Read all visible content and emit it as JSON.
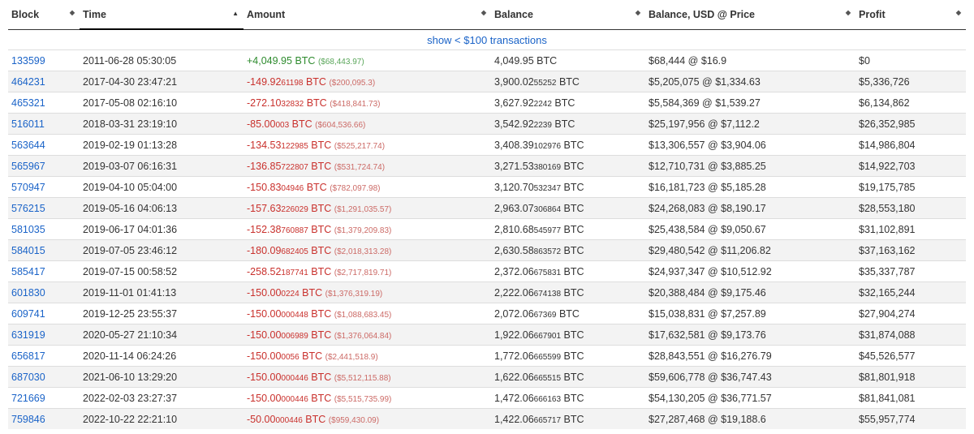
{
  "headers": {
    "block": "Block",
    "time": "Time",
    "amount": "Amount",
    "balance": "Balance",
    "usd": "Balance, USD @ Price",
    "profit": "Profit"
  },
  "toggle_link": "show < $100 transactions",
  "rows": [
    {
      "block": "133599",
      "time": "2011-06-28 05:30:05",
      "amt_main": "+4,049.95",
      "amt_small": "",
      "amt_unit": " BTC",
      "amt_usd": "($68,443.97)",
      "amt_sign": "pos",
      "bal_main": "4,049.95",
      "bal_small": "",
      "bal_unit": " BTC",
      "usd_price": "$68,444 @ $16.9",
      "profit": "$0"
    },
    {
      "block": "464231",
      "time": "2017-04-30 23:47:21",
      "amt_main": "-149.92",
      "amt_small": "61198",
      "amt_unit": " BTC",
      "amt_usd": "($200,095.3)",
      "amt_sign": "neg",
      "bal_main": "3,900.02",
      "bal_small": "55252",
      "bal_unit": " BTC",
      "usd_price": "$5,205,075 @ $1,334.63",
      "profit": "$5,336,726"
    },
    {
      "block": "465321",
      "time": "2017-05-08 02:16:10",
      "amt_main": "-272.10",
      "amt_small": "32832",
      "amt_unit": " BTC",
      "amt_usd": "($418,841.73)",
      "amt_sign": "neg",
      "bal_main": "3,627.92",
      "bal_small": "2242",
      "bal_unit": " BTC",
      "usd_price": "$5,584,369 @ $1,539.27",
      "profit": "$6,134,862"
    },
    {
      "block": "516011",
      "time": "2018-03-31 23:19:10",
      "amt_main": "-85.00",
      "amt_small": "003",
      "amt_unit": " BTC",
      "amt_usd": "($604,536.66)",
      "amt_sign": "neg",
      "bal_main": "3,542.92",
      "bal_small": "2239",
      "bal_unit": " BTC",
      "usd_price": "$25,197,956 @ $7,112.2",
      "profit": "$26,352,985"
    },
    {
      "block": "563644",
      "time": "2019-02-19 01:13:28",
      "amt_main": "-134.53",
      "amt_small": "122985",
      "amt_unit": " BTC",
      "amt_usd": "($525,217.74)",
      "amt_sign": "neg",
      "bal_main": "3,408.39",
      "bal_small": "102976",
      "bal_unit": " BTC",
      "usd_price": "$13,306,557 @ $3,904.06",
      "profit": "$14,986,804"
    },
    {
      "block": "565967",
      "time": "2019-03-07 06:16:31",
      "amt_main": "-136.85",
      "amt_small": "722807",
      "amt_unit": " BTC",
      "amt_usd": "($531,724.74)",
      "amt_sign": "neg",
      "bal_main": "3,271.53",
      "bal_small": "380169",
      "bal_unit": " BTC",
      "usd_price": "$12,710,731 @ $3,885.25",
      "profit": "$14,922,703"
    },
    {
      "block": "570947",
      "time": "2019-04-10 05:04:00",
      "amt_main": "-150.83",
      "amt_small": "04946",
      "amt_unit": " BTC",
      "amt_usd": "($782,097.98)",
      "amt_sign": "neg",
      "bal_main": "3,120.70",
      "bal_small": "532347",
      "bal_unit": " BTC",
      "usd_price": "$16,181,723 @ $5,185.28",
      "profit": "$19,175,785"
    },
    {
      "block": "576215",
      "time": "2019-05-16 04:06:13",
      "amt_main": "-157.63",
      "amt_small": "226029",
      "amt_unit": " BTC",
      "amt_usd": "($1,291,035.57)",
      "amt_sign": "neg",
      "bal_main": "2,963.07",
      "bal_small": "306864",
      "bal_unit": " BTC",
      "usd_price": "$24,268,083 @ $8,190.17",
      "profit": "$28,553,180"
    },
    {
      "block": "581035",
      "time": "2019-06-17 04:01:36",
      "amt_main": "-152.38",
      "amt_small": "760887",
      "amt_unit": " BTC",
      "amt_usd": "($1,379,209.83)",
      "amt_sign": "neg",
      "bal_main": "2,810.68",
      "bal_small": "545977",
      "bal_unit": " BTC",
      "usd_price": "$25,438,584 @ $9,050.67",
      "profit": "$31,102,891"
    },
    {
      "block": "584015",
      "time": "2019-07-05 23:46:12",
      "amt_main": "-180.09",
      "amt_small": "682405",
      "amt_unit": " BTC",
      "amt_usd": "($2,018,313.28)",
      "amt_sign": "neg",
      "bal_main": "2,630.58",
      "bal_small": "863572",
      "bal_unit": " BTC",
      "usd_price": "$29,480,542 @ $11,206.82",
      "profit": "$37,163,162"
    },
    {
      "block": "585417",
      "time": "2019-07-15 00:58:52",
      "amt_main": "-258.52",
      "amt_small": "187741",
      "amt_unit": " BTC",
      "amt_usd": "($2,717,819.71)",
      "amt_sign": "neg",
      "bal_main": "2,372.06",
      "bal_small": "675831",
      "bal_unit": " BTC",
      "usd_price": "$24,937,347 @ $10,512.92",
      "profit": "$35,337,787"
    },
    {
      "block": "601830",
      "time": "2019-11-01 01:41:13",
      "amt_main": "-150.00",
      "amt_small": "0224",
      "amt_unit": " BTC",
      "amt_usd": "($1,376,319.19)",
      "amt_sign": "neg",
      "bal_main": "2,222.06",
      "bal_small": "674138",
      "bal_unit": " BTC",
      "usd_price": "$20,388,484 @ $9,175.46",
      "profit": "$32,165,244"
    },
    {
      "block": "609741",
      "time": "2019-12-25 23:55:37",
      "amt_main": "-150.00",
      "amt_small": "000448",
      "amt_unit": " BTC",
      "amt_usd": "($1,088,683.45)",
      "amt_sign": "neg",
      "bal_main": "2,072.06",
      "bal_small": "67369",
      "bal_unit": " BTC",
      "usd_price": "$15,038,831 @ $7,257.89",
      "profit": "$27,904,274"
    },
    {
      "block": "631919",
      "time": "2020-05-27 21:10:34",
      "amt_main": "-150.00",
      "amt_small": "006989",
      "amt_unit": " BTC",
      "amt_usd": "($1,376,064.84)",
      "amt_sign": "neg",
      "bal_main": "1,922.06",
      "bal_small": "667901",
      "bal_unit": " BTC",
      "usd_price": "$17,632,581 @ $9,173.76",
      "profit": "$31,874,088"
    },
    {
      "block": "656817",
      "time": "2020-11-14 06:24:26",
      "amt_main": "-150.00",
      "amt_small": "0056",
      "amt_unit": " BTC",
      "amt_usd": "($2,441,518.9)",
      "amt_sign": "neg",
      "bal_main": "1,772.06",
      "bal_small": "665599",
      "bal_unit": " BTC",
      "usd_price": "$28,843,551 @ $16,276.79",
      "profit": "$45,526,577"
    },
    {
      "block": "687030",
      "time": "2021-06-10 13:29:20",
      "amt_main": "-150.00",
      "amt_small": "000446",
      "amt_unit": " BTC",
      "amt_usd": "($5,512,115.88)",
      "amt_sign": "neg",
      "bal_main": "1,622.06",
      "bal_small": "665515",
      "bal_unit": " BTC",
      "usd_price": "$59,606,778 @ $36,747.43",
      "profit": "$81,801,918"
    },
    {
      "block": "721669",
      "time": "2022-02-03 23:27:37",
      "amt_main": "-150.00",
      "amt_small": "000446",
      "amt_unit": " BTC",
      "amt_usd": "($5,515,735.99)",
      "amt_sign": "neg",
      "bal_main": "1,472.06",
      "bal_small": "666163",
      "bal_unit": " BTC",
      "usd_price": "$54,130,205 @ $36,771.57",
      "profit": "$81,841,081"
    },
    {
      "block": "759846",
      "time": "2022-10-22 22:21:10",
      "amt_main": "-50.00",
      "amt_small": "000446",
      "amt_unit": " BTC",
      "amt_usd": "($959,430.09)",
      "amt_sign": "neg",
      "bal_main": "1,422.06",
      "bal_small": "665717",
      "bal_unit": " BTC",
      "usd_price": "$27,287,468 @ $19,188.6",
      "profit": "$55,957,774"
    }
  ]
}
